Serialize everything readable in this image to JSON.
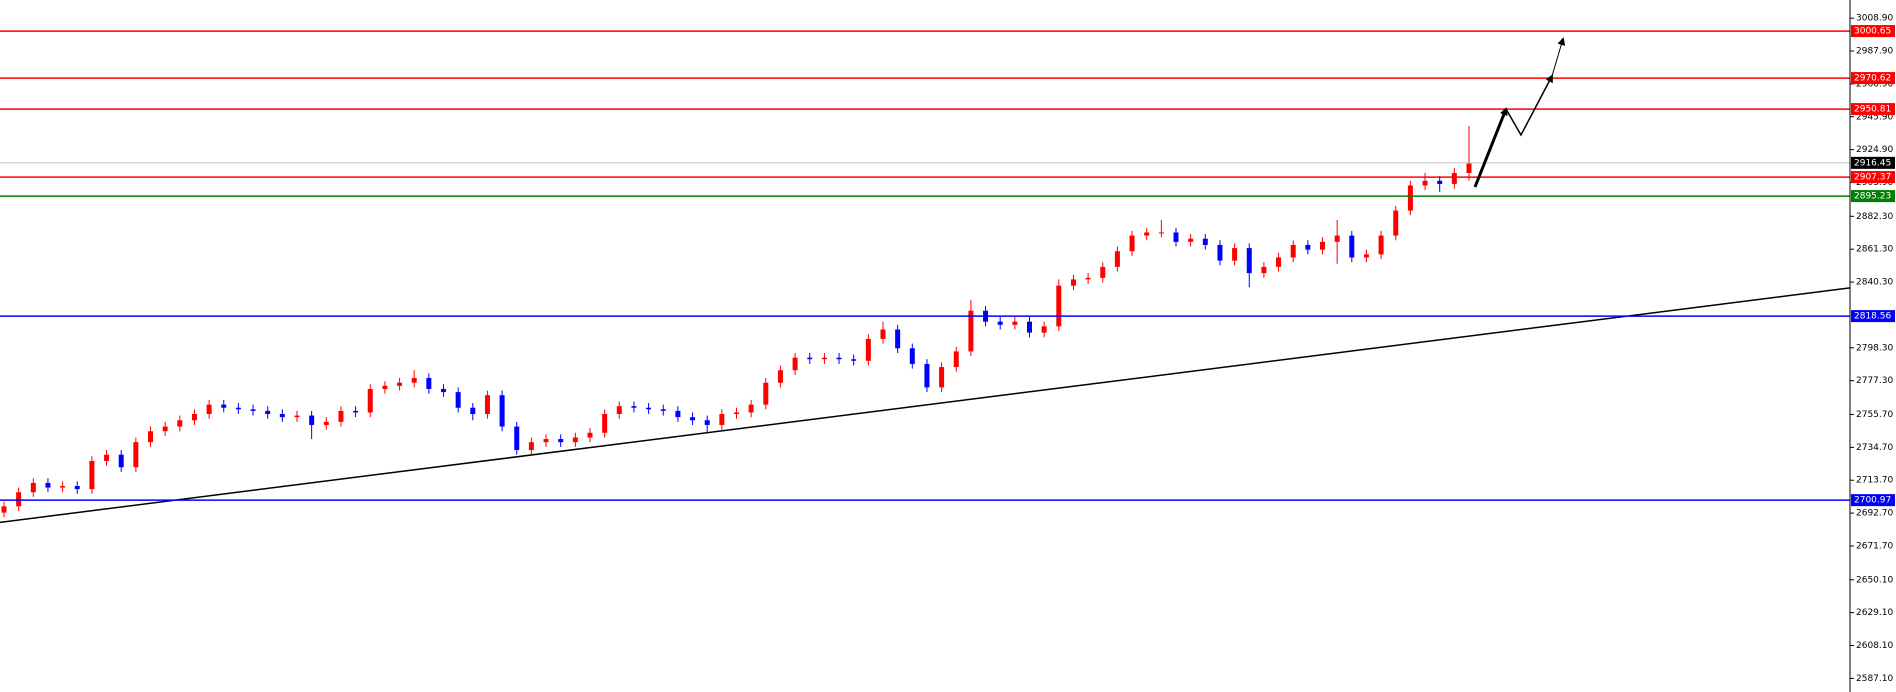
{
  "chart_data": {
    "type": "candlestick",
    "up_color": "#ff0000",
    "down_color": "#0000ff",
    "ylim": [
      2578.4,
      3020.5
    ],
    "yticks": [
      {
        "value": 3008.9,
        "label": "3008.90"
      },
      {
        "value": 2987.9,
        "label": "2987.90"
      },
      {
        "value": 2966.9,
        "label": "2966.90"
      },
      {
        "value": 2945.9,
        "label": "2945.90"
      },
      {
        "value": 2924.9,
        "label": "2924.90"
      },
      {
        "value": 2903.9,
        "label": "2903.90"
      },
      {
        "value": 2882.3,
        "label": "2882.30"
      },
      {
        "value": 2861.3,
        "label": "2861.30"
      },
      {
        "value": 2840.3,
        "label": "2840.30"
      },
      {
        "value": 2798.3,
        "label": "2798.30"
      },
      {
        "value": 2777.3,
        "label": "2777.30"
      },
      {
        "value": 2755.7,
        "label": "2755.70"
      },
      {
        "value": 2734.7,
        "label": "2734.70"
      },
      {
        "value": 2713.7,
        "label": "2713.70"
      },
      {
        "value": 2692.7,
        "label": "2692.70"
      },
      {
        "value": 2671.7,
        "label": "2671.70"
      },
      {
        "value": 2650.1,
        "label": "2650.10"
      },
      {
        "value": 2629.1,
        "label": "2629.10"
      },
      {
        "value": 2608.1,
        "label": "2608.10"
      },
      {
        "value": 2587.1,
        "label": "2587.10"
      }
    ],
    "levels": [
      {
        "value": 3000.65,
        "color": "#ff0000",
        "label_color": "#ff0000"
      },
      {
        "value": 2970.62,
        "color": "#ff0000",
        "label_color": "#ff0000"
      },
      {
        "value": 2950.81,
        "color": "#ff0000",
        "label_color": "#ff0000"
      },
      {
        "value": 2916.45,
        "color": "#c0c0c0",
        "label_color": "#000000"
      },
      {
        "value": 2907.37,
        "color": "#ff0000",
        "label_color": "#ff0000"
      },
      {
        "value": 2895.23,
        "color": "#008000",
        "label_color": "#008000"
      },
      {
        "value": 2818.56,
        "color": "#0000ff",
        "label_color": "#0000ff"
      },
      {
        "value": 2700.97,
        "color": "#0000ff",
        "label_color": "#0000ff"
      }
    ],
    "trendline": {
      "start": 2686.8,
      "end": 2836.6
    },
    "open": [
      2693,
      2697,
      2706,
      2712,
      2709,
      2710,
      2708,
      2726,
      2730,
      2722,
      2738,
      2745,
      2748,
      2752,
      2756,
      2762,
      2760,
      2759,
      2758,
      2756,
      2754,
      2755,
      2749,
      2751,
      2758,
      2757,
      2772,
      2774,
      2776,
      2779,
      2772,
      2770,
      2760,
      2756,
      2768,
      2748,
      2733,
      2738,
      2740,
      2738,
      2741,
      2744,
      2756,
      2761,
      2760,
      2759,
      2758,
      2754,
      2752,
      2749,
      2756,
      2757,
      2762,
      2776,
      2784,
      2792,
      2791,
      2792,
      2791,
      2790,
      2804,
      2810,
      2798,
      2788,
      2773,
      2786,
      2796,
      2822,
      2815,
      2813,
      2815,
      2808,
      2812,
      2838,
      2842,
      2843,
      2850,
      2860,
      2870,
      2872,
      2872,
      2866,
      2868,
      2864,
      2854,
      2862,
      2846,
      2850,
      2856,
      2864,
      2861,
      2866,
      2870,
      2856,
      2858,
      2870,
      2886,
      2902,
      2905,
      2903,
      2910
    ],
    "high": [
      2700,
      2709,
      2715,
      2715,
      2713,
      2713,
      2729,
      2733,
      2733,
      2741,
      2748,
      2751,
      2755,
      2759,
      2765,
      2765,
      2763,
      2762,
      2761,
      2759,
      2758,
      2758,
      2754,
      2761,
      2761,
      2775,
      2777,
      2779,
      2784,
      2782,
      2775,
      2773,
      2763,
      2771,
      2771,
      2751,
      2741,
      2743,
      2743,
      2744,
      2747,
      2759,
      2764,
      2764,
      2763,
      2762,
      2761,
      2757,
      2755,
      2759,
      2760,
      2765,
      2779,
      2787,
      2795,
      2795,
      2795,
      2795,
      2794,
      2807,
      2815,
      2813,
      2801,
      2791,
      2789,
      2799,
      2829,
      2825,
      2818,
      2818,
      2818,
      2815,
      2842,
      2845,
      2846,
      2853,
      2863,
      2873,
      2875,
      2880,
      2875,
      2871,
      2871,
      2867,
      2865,
      2865,
      2853,
      2859,
      2867,
      2867,
      2869,
      2880,
      2873,
      2861,
      2873,
      2889,
      2905,
      2910,
      2908,
      2913,
      2940
    ],
    "low": [
      2690,
      2694,
      2703,
      2706,
      2706,
      2705,
      2705,
      2723,
      2719,
      2719,
      2735,
      2742,
      2745,
      2749,
      2753,
      2757,
      2756,
      2755,
      2753,
      2751,
      2751,
      2740,
      2746,
      2748,
      2754,
      2754,
      2769,
      2771,
      2773,
      2769,
      2767,
      2757,
      2752,
      2753,
      2745,
      2730,
      2730,
      2735,
      2735,
      2735,
      2738,
      2741,
      2753,
      2757,
      2756,
      2755,
      2751,
      2749,
      2744,
      2746,
      2753,
      2754,
      2759,
      2773,
      2781,
      2788,
      2788,
      2788,
      2787,
      2787,
      2801,
      2795,
      2785,
      2770,
      2770,
      2783,
      2793,
      2812,
      2810,
      2810,
      2805,
      2805,
      2809,
      2835,
      2839,
      2840,
      2847,
      2857,
      2867,
      2869,
      2863,
      2863,
      2861,
      2851,
      2851,
      2837,
      2843,
      2847,
      2853,
      2858,
      2858,
      2852,
      2853,
      2853,
      2855,
      2867,
      2883,
      2899,
      2898,
      2900,
      2905
    ],
    "close": [
      2697,
      2706,
      2712,
      2709,
      2710,
      2708,
      2726,
      2730,
      2722,
      2738,
      2745,
      2748,
      2752,
      2756,
      2762,
      2760,
      2759,
      2758,
      2756,
      2754,
      2755,
      2749,
      2751,
      2758,
      2757,
      2772,
      2774,
      2776,
      2779,
      2772,
      2770,
      2760,
      2756,
      2768,
      2748,
      2733,
      2738,
      2740,
      2738,
      2741,
      2744,
      2756,
      2761,
      2760,
      2759,
      2758,
      2754,
      2752,
      2749,
      2756,
      2757,
      2762,
      2776,
      2784,
      2792,
      2791,
      2792,
      2791,
      2790,
      2804,
      2810,
      2798,
      2788,
      2773,
      2786,
      2796,
      2822,
      2815,
      2813,
      2815,
      2808,
      2812,
      2838,
      2842,
      2843,
      2850,
      2860,
      2870,
      2872,
      2872,
      2866,
      2868,
      2864,
      2854,
      2862,
      2846,
      2850,
      2856,
      2864,
      2861,
      2866,
      2870,
      2856,
      2858,
      2870,
      2886,
      2902,
      2905,
      2903,
      2910,
      2916
    ]
  }
}
